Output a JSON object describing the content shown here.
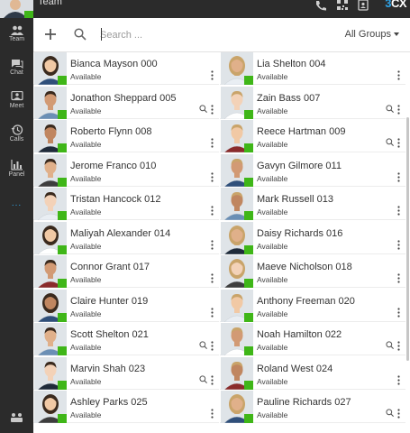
{
  "header": {
    "title": "Team",
    "brand_prefix": "3",
    "brand_suffix": "CX"
  },
  "nav": [
    {
      "label": "Team",
      "icon": "team-icon"
    },
    {
      "label": "Chat",
      "icon": "chat-icon"
    },
    {
      "label": "Meet",
      "icon": "meet-icon"
    },
    {
      "label": "Calls",
      "icon": "history-icon"
    },
    {
      "label": "Panel",
      "icon": "panel-icon"
    }
  ],
  "nav_more": "...",
  "toolbar": {
    "search_placeholder": "Search ...",
    "groups_label": "All Groups"
  },
  "contacts": [
    {
      "name": "Bianca Mayson 000",
      "status": "Available",
      "search_icon": false,
      "gender": "f"
    },
    {
      "name": "Lia Shelton 004",
      "status": "Available",
      "search_icon": false,
      "gender": "f"
    },
    {
      "name": "Jonathon Sheppard 005",
      "status": "Available",
      "search_icon": true,
      "gender": "m"
    },
    {
      "name": "Zain Bass 007",
      "status": "Available",
      "search_icon": true,
      "gender": "m"
    },
    {
      "name": "Roberto Flynn 008",
      "status": "Available",
      "search_icon": false,
      "gender": "m"
    },
    {
      "name": "Reece Hartman 009",
      "status": "Available",
      "search_icon": true,
      "gender": "m"
    },
    {
      "name": "Jerome Franco 010",
      "status": "Available",
      "search_icon": false,
      "gender": "m"
    },
    {
      "name": "Gavyn Gilmore 011",
      "status": "Available",
      "search_icon": false,
      "gender": "m"
    },
    {
      "name": "Tristan Hancock 012",
      "status": "Available",
      "search_icon": false,
      "gender": "m"
    },
    {
      "name": "Mark Russell 013",
      "status": "Available",
      "search_icon": false,
      "gender": "m"
    },
    {
      "name": "Maliyah Alexander 014",
      "status": "Available",
      "search_icon": false,
      "gender": "f"
    },
    {
      "name": "Daisy Richards 016",
      "status": "Available",
      "search_icon": false,
      "gender": "f"
    },
    {
      "name": "Connor Grant 017",
      "status": "Available",
      "search_icon": false,
      "gender": "m"
    },
    {
      "name": "Maeve Nicholson 018",
      "status": "Available",
      "search_icon": false,
      "gender": "f"
    },
    {
      "name": "Claire Hunter 019",
      "status": "Available",
      "search_icon": false,
      "gender": "f"
    },
    {
      "name": "Anthony Freeman 020",
      "status": "Available",
      "search_icon": false,
      "gender": "m"
    },
    {
      "name": "Scott Shelton 021",
      "status": "Available",
      "search_icon": true,
      "gender": "m"
    },
    {
      "name": "Noah Hamilton 022",
      "status": "Available",
      "search_icon": true,
      "gender": "m"
    },
    {
      "name": "Marvin Shah 023",
      "status": "Available",
      "search_icon": true,
      "gender": "m"
    },
    {
      "name": "Roland West 024",
      "status": "Available",
      "search_icon": false,
      "gender": "m"
    },
    {
      "name": "Ashley Parks 025",
      "status": "Available",
      "search_icon": false,
      "gender": "f"
    },
    {
      "name": "Pauline Richards 027",
      "status": "Available",
      "search_icon": true,
      "gender": "f"
    }
  ],
  "colors": {
    "status_available": "#3fb618",
    "brand": "#2fa3e6",
    "nav_bg": "#2b2b2b"
  }
}
